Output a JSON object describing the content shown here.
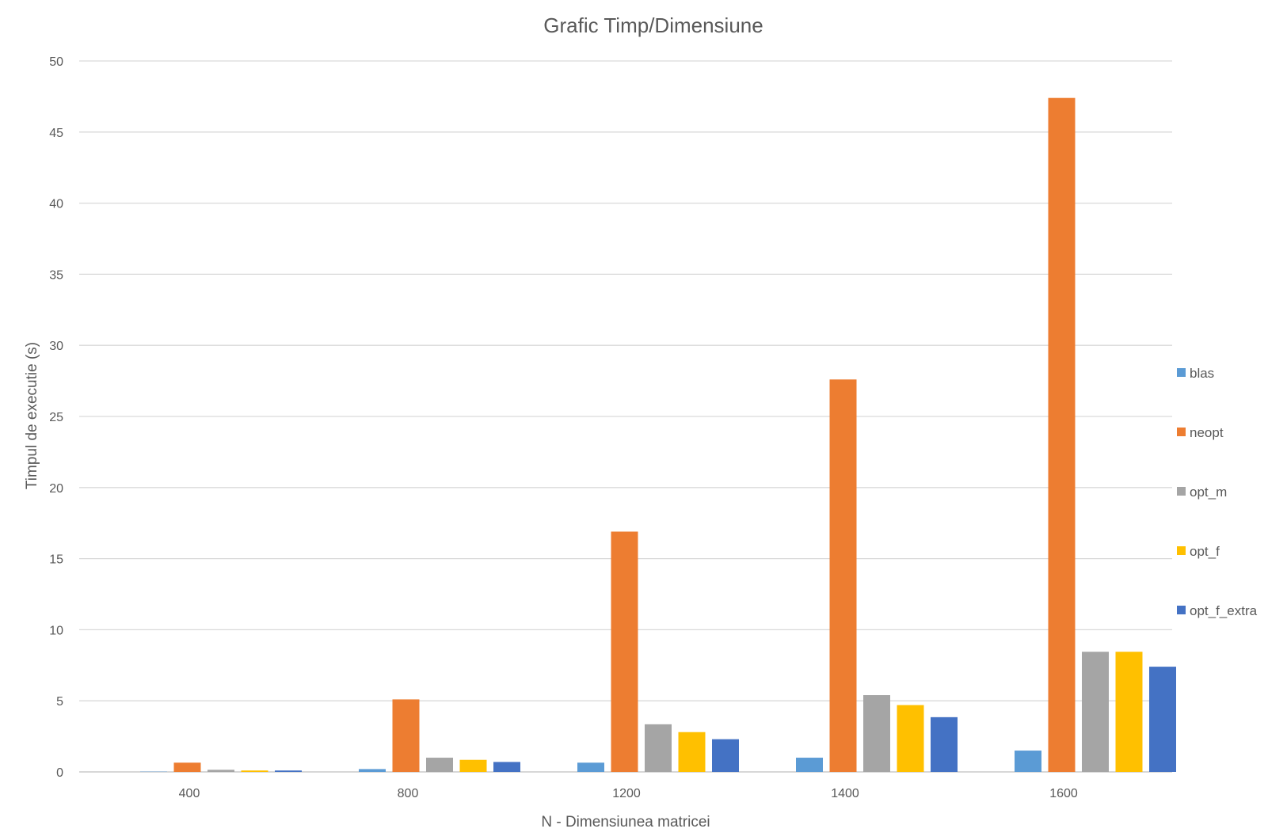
{
  "chart_data": {
    "type": "bar",
    "title": "Grafic Timp/Dimensiune",
    "xlabel": "N - Dimensiunea matricei",
    "ylabel": "Timpul de executie (s)",
    "categories": [
      "400",
      "800",
      "1200",
      "1400",
      "1600"
    ],
    "ylim": [
      0,
      50
    ],
    "yticks": [
      0,
      5,
      10,
      15,
      20,
      25,
      30,
      35,
      40,
      45,
      50
    ],
    "grid": true,
    "legend_position": "right",
    "series": [
      {
        "name": "blas",
        "color": "#5b9bd5",
        "values": [
          0.02,
          0.2,
          0.65,
          1.0,
          1.5
        ]
      },
      {
        "name": "neopt",
        "color": "#ed7d31",
        "values": [
          0.65,
          5.1,
          16.9,
          27.6,
          47.4
        ]
      },
      {
        "name": "opt_m",
        "color": "#a5a5a5",
        "values": [
          0.15,
          1.0,
          3.35,
          5.4,
          8.45
        ]
      },
      {
        "name": "opt_f",
        "color": "#ffc000",
        "values": [
          0.1,
          0.85,
          2.8,
          4.7,
          8.45
        ]
      },
      {
        "name": "opt_f_extra",
        "color": "#4472c4",
        "values": [
          0.1,
          0.7,
          2.3,
          3.85,
          7.4
        ]
      }
    ]
  }
}
